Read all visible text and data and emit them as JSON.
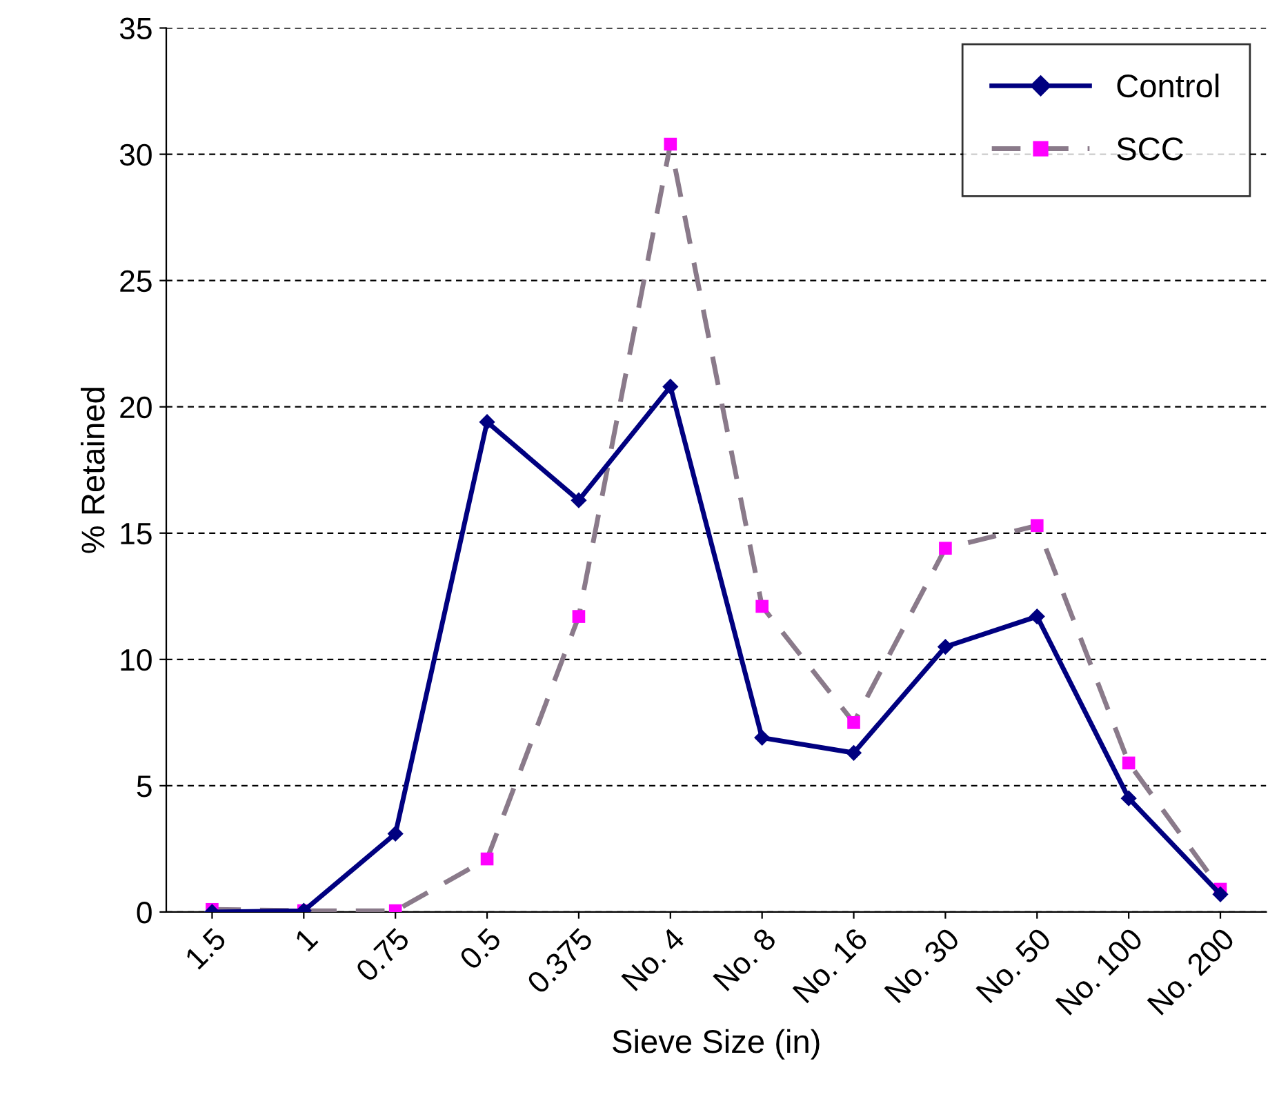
{
  "chart_data": {
    "type": "line",
    "xlabel": "Sieve Size (in)",
    "ylabel": "% Retained",
    "categories": [
      "1.5",
      "1",
      "0.75",
      "0.5",
      "0.375",
      "No. 4",
      "No. 8",
      "No. 16",
      "No. 30",
      "No. 50",
      "No. 100",
      "No. 200"
    ],
    "series": [
      {
        "name": "Control",
        "color": "#000080",
        "marker": "diamond",
        "line_style": "solid",
        "values": [
          0,
          0.05,
          3.1,
          19.4,
          16.3,
          20.8,
          6.9,
          6.3,
          10.5,
          11.7,
          4.5,
          0.7
        ]
      },
      {
        "name": "SCC",
        "color": "#8a7a8a",
        "colors": [
          "#ff00ff",
          "#ff00ff",
          "#ff00ff",
          "#ff00ff",
          "#ff00ff",
          "#ff00ff",
          "#ff00ff",
          "#ff00ff",
          "#ff00ff",
          "#ff00ff",
          "#ff00ff",
          "#ff00ff"
        ],
        "marker": "square",
        "line_style": "dashed",
        "values": [
          0.1,
          0.05,
          0.05,
          2.1,
          11.7,
          30.4,
          12.1,
          7.5,
          14.4,
          15.3,
          5.9,
          0.9
        ]
      }
    ],
    "ylim": [
      0,
      35
    ],
    "yticks": [
      0,
      5,
      10,
      15,
      20,
      25,
      30,
      35
    ],
    "grid": "y",
    "legend": "top right"
  }
}
